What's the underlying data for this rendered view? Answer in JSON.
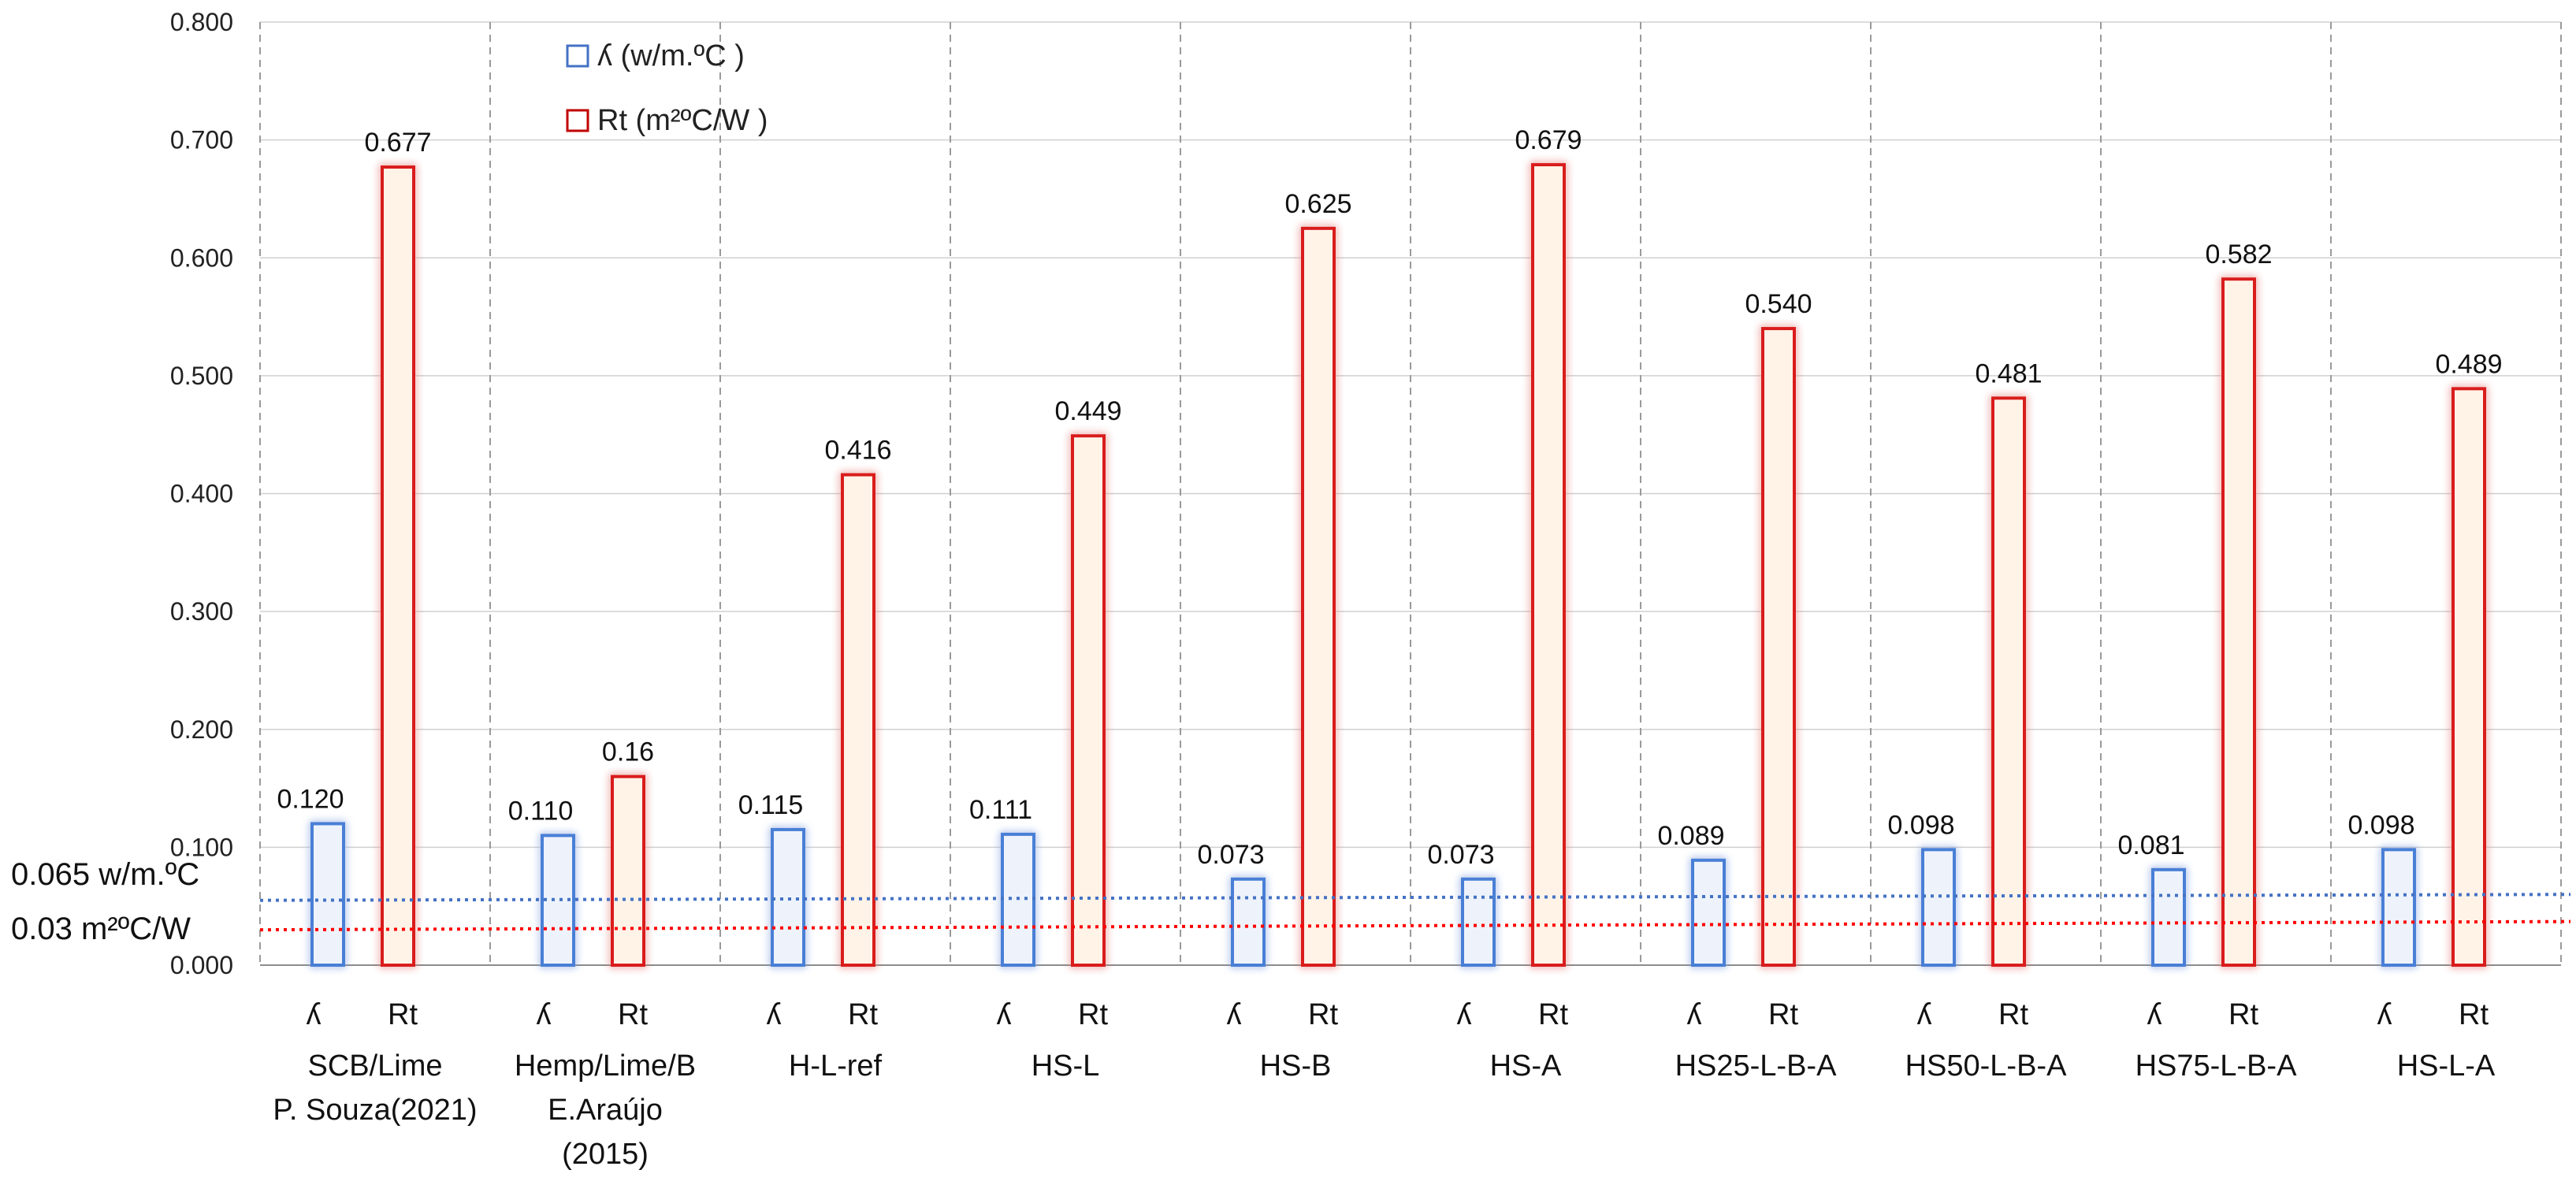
{
  "chart_data": {
    "type": "bar",
    "ylim": [
      0,
      0.8
    ],
    "yticks": [
      "0.000",
      "0.100",
      "0.200",
      "0.300",
      "0.400",
      "0.500",
      "0.600",
      "0.700",
      "0.800"
    ],
    "sublabels": [
      "ʎ",
      "Rt"
    ],
    "categories": [
      [
        "SCB/Lime",
        "P. Souza(2021)"
      ],
      [
        "Hemp/Lime/B",
        "E.Araújo",
        "(2015)"
      ],
      [
        "H-L-ref"
      ],
      [
        "HS-L"
      ],
      [
        "HS-B"
      ],
      [
        "HS-A"
      ],
      [
        "HS25-L-B-A"
      ],
      [
        "HS50-L-B-A"
      ],
      [
        "HS75-L-B-A"
      ],
      [
        "HS-L-A"
      ]
    ],
    "series": [
      {
        "name": "ʎ (w/m.ºC )",
        "color": "#4472C4",
        "values": [
          0.12,
          0.11,
          0.115,
          0.111,
          0.073,
          0.073,
          0.089,
          0.098,
          0.081,
          0.098
        ],
        "labels": [
          "0.120",
          "0.110",
          "0.115",
          "0.111",
          "0.073",
          "0.073",
          "0.089",
          "0.098",
          "0.081",
          "0.098"
        ]
      },
      {
        "name": "Rt  (m²ºC/W )",
        "color": "#C00000",
        "values": [
          0.677,
          0.16,
          0.416,
          0.449,
          0.625,
          0.679,
          0.54,
          0.481,
          0.582,
          0.489
        ],
        "labels": [
          "0.677",
          "0.16",
          "0.416",
          "0.449",
          "0.625",
          "0.679",
          "0.540",
          "0.481",
          "0.582",
          "0.489"
        ]
      }
    ],
    "reference_lines": [
      {
        "label": "0.065 w/m.ºC",
        "color": "#4472C4",
        "start": 0.055,
        "end": 0.06
      },
      {
        "label": "0.03 m²ºC/W",
        "color": "#FF0000",
        "start": 0.03,
        "end": 0.037
      }
    ],
    "legend": {
      "position": "top-left",
      "items": [
        {
          "label": "ʎ (w/m.ºC )",
          "color": "#4472C4"
        },
        {
          "label": "Rt  (m²ºC/W )",
          "color": "#C00000"
        }
      ]
    },
    "grid": true
  }
}
